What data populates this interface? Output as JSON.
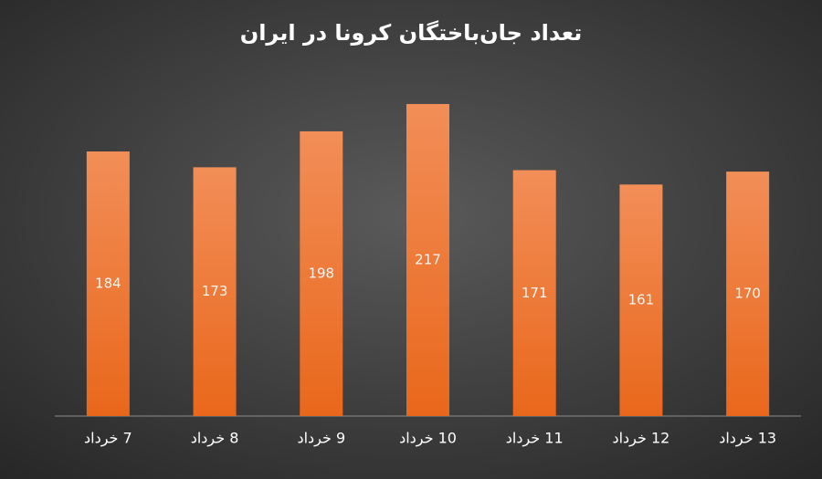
{
  "chart_data": {
    "type": "bar",
    "title": "تعداد جان‌باختگان کرونا در ایران",
    "categories": [
      "7 خرداد",
      "8 خرداد",
      "9 خرداد",
      "10 خرداد",
      "11 خرداد",
      "12 خرداد",
      "13 خرداد"
    ],
    "values": [
      184,
      173,
      198,
      217,
      171,
      161,
      170
    ],
    "color": "#ee7a35",
    "ylim": [
      0,
      250
    ]
  }
}
